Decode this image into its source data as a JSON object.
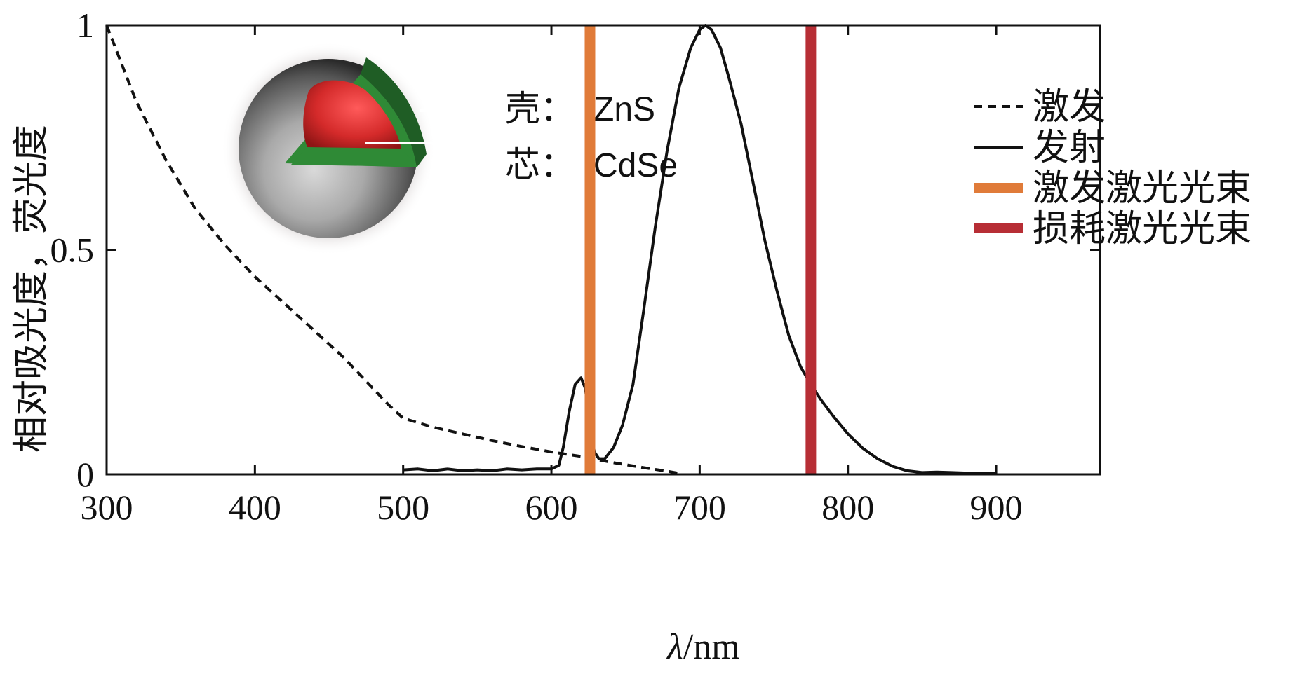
{
  "chart_data": {
    "type": "line",
    "xlabel_symbol": "λ",
    "xlabel_unit": "/nm",
    "ylabel": "相对吸光度，荧光度",
    "xlim": [
      300,
      970
    ],
    "ylim": [
      0,
      1
    ],
    "x_ticks": [
      300,
      400,
      500,
      600,
      700,
      800,
      900
    ],
    "y_ticks": [
      0,
      0.5,
      1
    ],
    "y_tick_labels": [
      "0",
      "0.5",
      "1"
    ],
    "grid": false,
    "legend_position": "right",
    "series": [
      {
        "name": "激发",
        "style": "dashed",
        "color": "#111111",
        "x": [
          300,
          320,
          340,
          360,
          380,
          400,
          420,
          440,
          460,
          480,
          490,
          500,
          520,
          540,
          560,
          580,
          600,
          620,
          640,
          660,
          680,
          685
        ],
        "y": [
          1.0,
          0.83,
          0.7,
          0.59,
          0.51,
          0.44,
          0.38,
          0.32,
          0.26,
          0.19,
          0.155,
          0.125,
          0.105,
          0.09,
          0.075,
          0.062,
          0.05,
          0.04,
          0.027,
          0.016,
          0.006,
          0.003
        ]
      },
      {
        "name": "发射",
        "style": "solid",
        "color": "#111111",
        "x": [
          500,
          510,
          520,
          530,
          540,
          550,
          560,
          570,
          580,
          590,
          600,
          605,
          608,
          612,
          616,
          620,
          623,
          626,
          629,
          632,
          636,
          642,
          648,
          655,
          662,
          670,
          678,
          686,
          694,
          700,
          704,
          708,
          714,
          720,
          728,
          736,
          744,
          752,
          760,
          768,
          775,
          782,
          790,
          800,
          810,
          820,
          830,
          840,
          850,
          860,
          870,
          880,
          890,
          900
        ],
        "y": [
          0.01,
          0.012,
          0.008,
          0.012,
          0.008,
          0.01,
          0.008,
          0.012,
          0.01,
          0.012,
          0.012,
          0.02,
          0.06,
          0.14,
          0.2,
          0.215,
          0.19,
          0.1,
          0.05,
          0.035,
          0.035,
          0.06,
          0.11,
          0.2,
          0.36,
          0.55,
          0.72,
          0.86,
          0.95,
          0.99,
          1.0,
          0.99,
          0.95,
          0.88,
          0.78,
          0.65,
          0.52,
          0.41,
          0.31,
          0.24,
          0.2,
          0.165,
          0.13,
          0.09,
          0.058,
          0.035,
          0.018,
          0.008,
          0.004,
          0.005,
          0.004,
          0.003,
          0.002,
          0.002
        ]
      }
    ],
    "vertical_lines": [
      {
        "name": "激发激光光束",
        "x": 626,
        "color": "#e07b39"
      },
      {
        "name": "损耗激光光束",
        "x": 775,
        "color": "#b72e35"
      }
    ],
    "inset": {
      "shell_label": "壳：",
      "shell_material": "ZnS",
      "core_label": "芯：",
      "core_material": "CdSe"
    }
  }
}
